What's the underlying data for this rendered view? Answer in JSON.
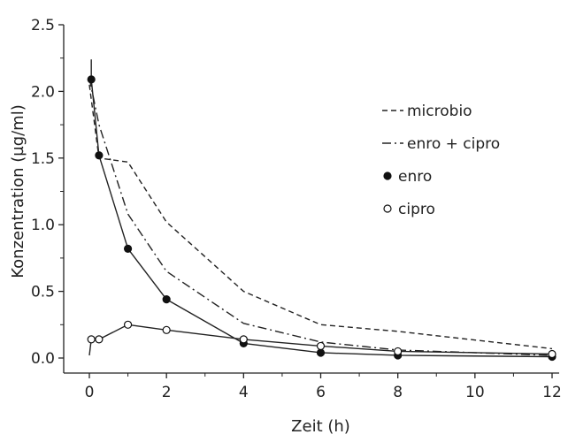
{
  "chart_data": {
    "type": "line",
    "xlabel": "Zeit (h)",
    "ylabel": "Konzentration (µg/ml)",
    "xlim": [
      0,
      12
    ],
    "ylim": [
      0,
      2.5
    ],
    "xticks": [
      0,
      2,
      4,
      6,
      8,
      10,
      12
    ],
    "xtick_labels": [
      "0",
      "2",
      "4",
      "6",
      "8",
      "10",
      "12"
    ],
    "yticks": [
      0,
      0.5,
      1.0,
      1.5,
      2.0,
      2.5
    ],
    "ytick_labels": [
      "0.0",
      "0.5",
      "1.0",
      "1.5",
      "2.0",
      "2.5"
    ],
    "grid": false,
    "legend_position": "right",
    "series": [
      {
        "name": "microbio",
        "style": "dashed",
        "marker": "none",
        "x": [
          0,
          0.25,
          1,
          2,
          4,
          6,
          8,
          12
        ],
        "y": [
          2.05,
          1.5,
          1.47,
          1.02,
          0.5,
          0.25,
          0.2,
          0.07
        ]
      },
      {
        "name": "enro + cipro",
        "style": "dashdot",
        "marker": "none",
        "x": [
          0,
          0.25,
          1,
          2,
          4,
          6,
          8,
          12
        ],
        "y": [
          2.1,
          1.75,
          1.08,
          0.65,
          0.26,
          0.12,
          0.06,
          0.02
        ]
      },
      {
        "name": "enro",
        "style": "solid",
        "marker": "filled-circle",
        "x": [
          0.05,
          0.25,
          1,
          2,
          4,
          6,
          8,
          12
        ],
        "y": [
          2.09,
          1.52,
          0.82,
          0.44,
          0.11,
          0.04,
          0.02,
          0.01
        ]
      },
      {
        "name": "cipro",
        "style": "solid",
        "marker": "open-circle",
        "x": [
          0.05,
          0.25,
          1,
          2,
          4,
          6,
          8,
          12
        ],
        "y": [
          0.14,
          0.14,
          0.25,
          0.21,
          0.14,
          0.09,
          0.05,
          0.03
        ]
      }
    ],
    "extra_lines": [
      {
        "name": "enro-initial",
        "style": "solid",
        "x": [
          0.05,
          0.05
        ],
        "y": [
          2.24,
          2.09
        ]
      },
      {
        "name": "cipro-initial",
        "style": "solid",
        "x": [
          0,
          0.05
        ],
        "y": [
          0.02,
          0.14
        ]
      }
    ]
  }
}
